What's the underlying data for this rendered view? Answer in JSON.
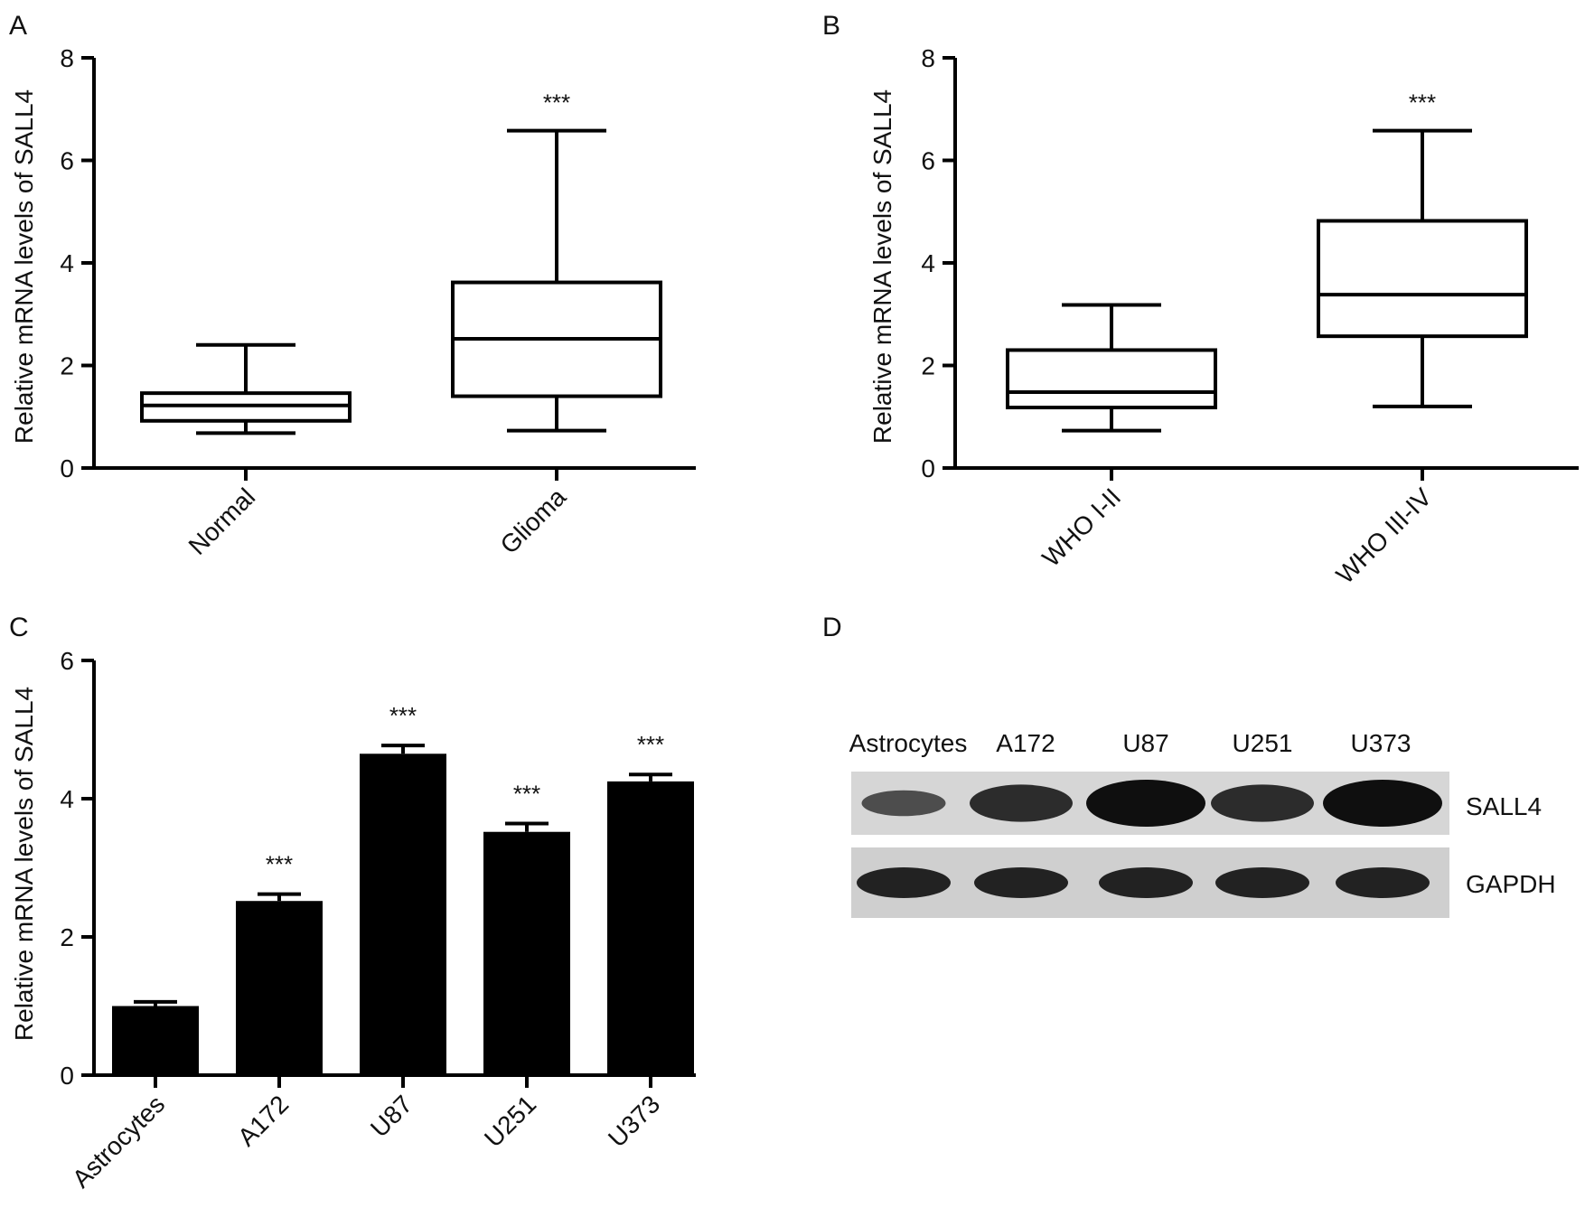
{
  "figure": {
    "panels": [
      {
        "letter": "A"
      },
      {
        "letter": "B"
      },
      {
        "letter": "C"
      },
      {
        "letter": "D"
      }
    ]
  },
  "chart_data": [
    {
      "panel": "A",
      "type": "box",
      "ylabel": "Relative mRNA levels of SALL4",
      "ylim": [
        0,
        8
      ],
      "yticks": [
        "0",
        "2",
        "4",
        "6",
        "8"
      ],
      "categories": [
        "Normal",
        "Glioma"
      ],
      "boxes": [
        {
          "min": 0.68,
          "q1": 0.92,
          "median": 1.22,
          "q3": 1.46,
          "max": 2.4
        },
        {
          "min": 0.73,
          "q1": 1.4,
          "median": 2.52,
          "q3": 3.62,
          "max": 6.58
        }
      ],
      "significance": [
        "",
        "***"
      ]
    },
    {
      "panel": "B",
      "type": "box",
      "ylabel": "Relative mRNA levels of SALL4",
      "ylim": [
        0,
        8
      ],
      "yticks": [
        "0",
        "2",
        "4",
        "6",
        "8"
      ],
      "categories": [
        "WHO I-II",
        "WHO III-IV"
      ],
      "boxes": [
        {
          "min": 0.73,
          "q1": 1.18,
          "median": 1.48,
          "q3": 2.3,
          "max": 3.18
        },
        {
          "min": 1.2,
          "q1": 2.57,
          "median": 3.38,
          "q3": 4.82,
          "max": 6.58
        }
      ],
      "significance": [
        "",
        "***"
      ]
    },
    {
      "panel": "C",
      "type": "bar",
      "ylabel": "Relative mRNA levels of SALL4",
      "ylim": [
        0,
        6
      ],
      "yticks": [
        "0",
        "2",
        "4",
        "6"
      ],
      "categories": [
        "Astrocytes",
        "A172",
        "U87",
        "U251",
        "U373"
      ],
      "values": [
        1.0,
        2.52,
        4.65,
        3.52,
        4.25
      ],
      "errors": [
        0.06,
        0.1,
        0.12,
        0.12,
        0.1
      ],
      "significance": [
        "",
        "***",
        "***",
        "***",
        "***"
      ]
    }
  ],
  "western_blot": {
    "lanes": [
      "Astrocytes",
      "A172",
      "U87",
      "U251",
      "U373"
    ],
    "rows": [
      {
        "label": "SALL4",
        "intensities": [
          0.35,
          0.7,
          1.0,
          0.7,
          1.0
        ]
      },
      {
        "label": "GAPDH",
        "intensities": [
          0.8,
          0.8,
          0.8,
          0.8,
          0.8
        ]
      }
    ]
  }
}
